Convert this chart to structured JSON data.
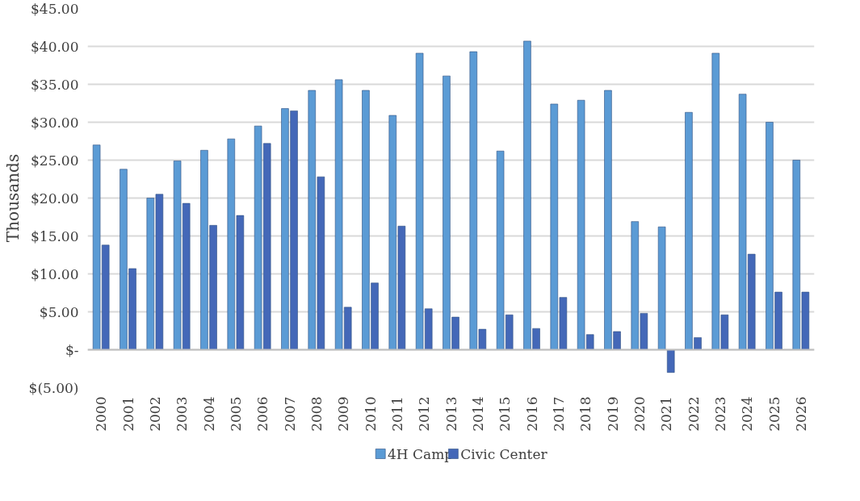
{
  "chart_data": {
    "type": "bar",
    "ylabel": "Thousands",
    "categories": [
      "2000",
      "2001",
      "2002",
      "2003",
      "2004",
      "2005",
      "2006",
      "2007",
      "2008",
      "2009",
      "2010",
      "2011",
      "2012",
      "2013",
      "2014",
      "2015",
      "2016",
      "2017",
      "2018",
      "2019",
      "2020",
      "2021",
      "2022",
      "2023",
      "2024",
      "2025",
      "2026"
    ],
    "series": [
      {
        "name": "4H Camp",
        "color": "#5b9bd5",
        "values": [
          27.0,
          23.8,
          20.0,
          24.9,
          26.3,
          27.8,
          29.5,
          31.8,
          34.2,
          35.6,
          34.2,
          30.9,
          39.1,
          36.1,
          39.3,
          26.2,
          40.7,
          32.4,
          32.9,
          34.2,
          16.9,
          16.2,
          31.3,
          39.1,
          33.7,
          30.0,
          25.0
        ]
      },
      {
        "name": "Civic Center",
        "color": "#4468b8",
        "values": [
          13.8,
          10.7,
          20.5,
          19.3,
          16.4,
          17.7,
          27.2,
          31.5,
          22.8,
          5.6,
          8.8,
          16.3,
          5.4,
          4.3,
          2.7,
          4.6,
          2.8,
          6.9,
          2.0,
          2.4,
          4.8,
          -3.0,
          1.6,
          4.6,
          12.6,
          7.6,
          7.6
        ]
      }
    ],
    "ylim": [
      -5,
      45
    ],
    "yticks": [
      {
        "value": -5,
        "label": "$(5.00)"
      },
      {
        "value": 0,
        "label": "$-"
      },
      {
        "value": 5,
        "label": "$5.00"
      },
      {
        "value": 10,
        "label": "$10.00"
      },
      {
        "value": 15,
        "label": "$15.00"
      },
      {
        "value": 20,
        "label": "$20.00"
      },
      {
        "value": 25,
        "label": "$25.00"
      },
      {
        "value": 30,
        "label": "$30.00"
      },
      {
        "value": 35,
        "label": "$35.00"
      },
      {
        "value": 40,
        "label": "$40.00"
      },
      {
        "value": 45,
        "label": "$45.00"
      }
    ],
    "grid": "y",
    "legend": "bottom"
  }
}
